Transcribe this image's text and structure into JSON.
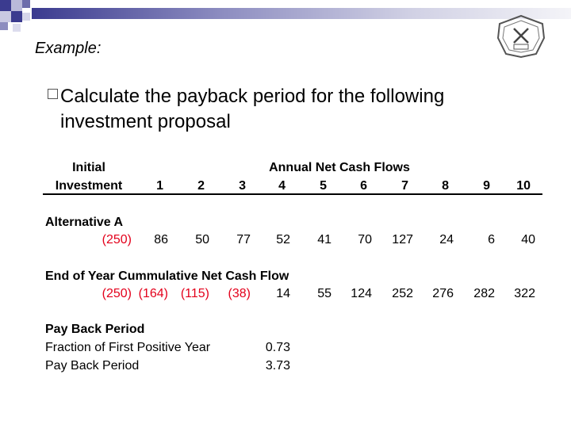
{
  "slide": {
    "heading": "Example:",
    "lead": "Calculate the payback period for the following investment proposal",
    "seal_icon": "school-seal-icon",
    "accent_color": "#3b3b8f"
  },
  "table": {
    "header": {
      "initial": "Initial",
      "investment": "Investment",
      "annual": "Annual Net Cash Flows",
      "years": [
        "1",
        "2",
        "3",
        "4",
        "5",
        "6",
        "7",
        "8",
        "9",
        "10"
      ]
    },
    "alt_label": "Alternative A",
    "alt_row": {
      "initial": "(250)",
      "flows": [
        "86",
        "50",
        "77",
        "52",
        "41",
        "70",
        "127",
        "24",
        "6",
        "40"
      ]
    },
    "cum_label": "End of Year Cummulative Net Cash Flow",
    "cum_row": {
      "initial": "(250)",
      "flows": [
        "(164)",
        "(115)",
        "(38)",
        "14",
        "55",
        "124",
        "252",
        "276",
        "282",
        "322"
      ]
    },
    "payback_label": "Pay Back Period",
    "fraction_label": "Fraction of First Positive Year",
    "fraction_value": "0.73",
    "payback_row_label": "Pay Back Period",
    "payback_value": "3.73",
    "negative_color": "#e3001b"
  }
}
